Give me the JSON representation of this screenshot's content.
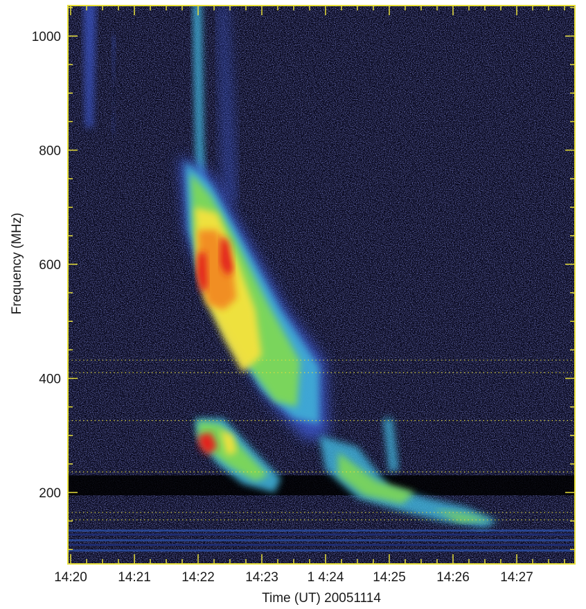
{
  "chart_data": {
    "type": "heatmap",
    "title": "",
    "xlabel": "Time (UT) 20051114",
    "ylabel": "Frequency (MHz)",
    "x_tick_labels": [
      "14:20",
      "14:21",
      "14:22",
      "14:23",
      "1 4:24",
      "14:25",
      "14:26",
      "14:27"
    ],
    "x_tick_minutes": [
      0,
      1,
      2,
      3,
      4,
      5,
      6,
      7
    ],
    "xlim_minutes": [
      0,
      8
    ],
    "y_ticks": [
      200,
      400,
      600,
      800,
      1000
    ],
    "ylim": [
      80,
      1060
    ],
    "colormap": [
      "#000000",
      "#1c1c6e",
      "#3a55c8",
      "#3fb0d8",
      "#7ed857",
      "#f5e23c",
      "#f28a20",
      "#e3201c"
    ],
    "frame_color": "#e8e03a",
    "dotted_lines_mhz": [
      432,
      410,
      326,
      236,
      165,
      152
    ],
    "features": [
      {
        "name": "main-burst",
        "start_minute": 2.0,
        "end_minute": 4.0,
        "top_mhz": 790,
        "bottom_mhz": 290,
        "peak_minute": 2.3,
        "peak_mhz": 640
      },
      {
        "name": "lower-branch",
        "start_minute": 2.0,
        "end_minute": 3.3,
        "top_mhz": 330,
        "bottom_mhz": 180
      },
      {
        "name": "slow-drift-tail",
        "start_minute": 4.0,
        "end_minute": 6.6,
        "top_mhz": 300,
        "bottom_mhz": 140
      },
      {
        "name": "early-spike-1",
        "start_minute": 0.2,
        "end_minute": 0.4,
        "top_mhz": 1060,
        "bottom_mhz": 840
      },
      {
        "name": "early-spike-2",
        "start_minute": 0.65,
        "end_minute": 0.7,
        "top_mhz": 1000,
        "bottom_mhz": 830
      },
      {
        "name": "pre-burst-spike",
        "start_minute": 1.95,
        "end_minute": 2.1,
        "top_mhz": 1060,
        "bottom_mhz": 700
      }
    ]
  }
}
